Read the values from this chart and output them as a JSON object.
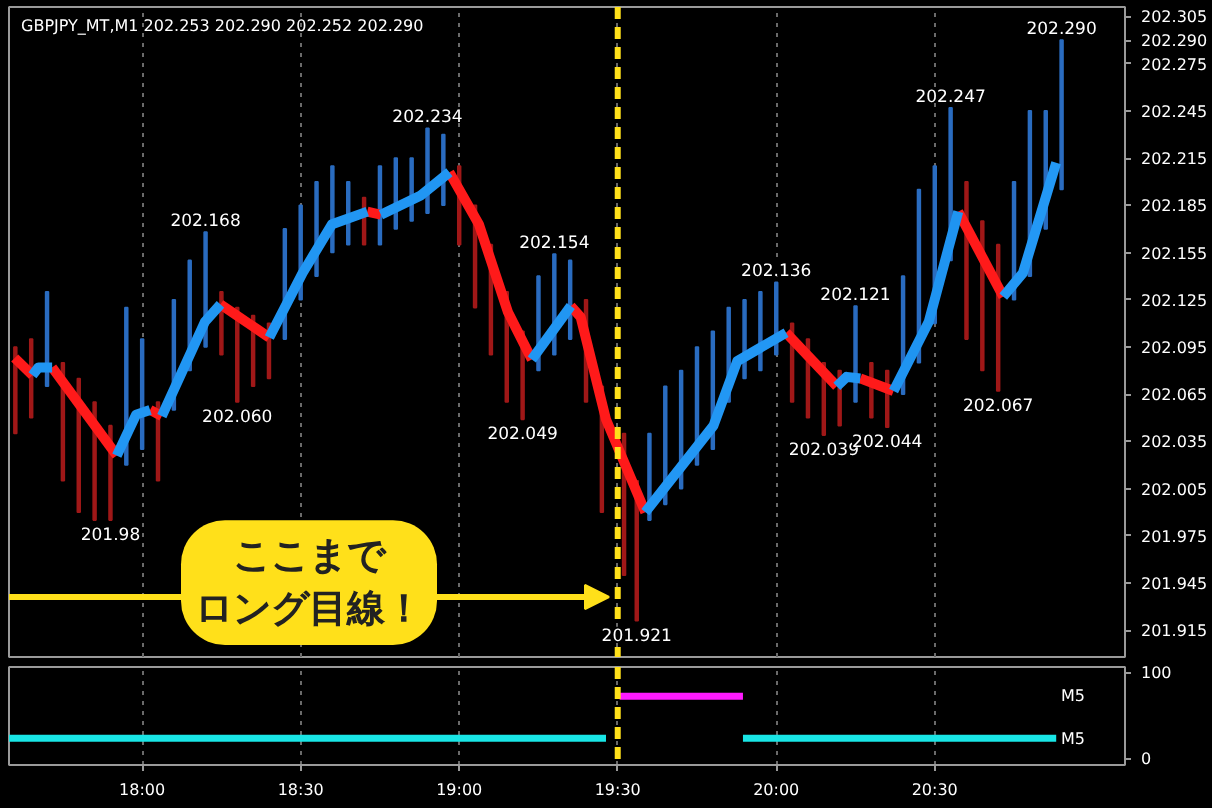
{
  "chart_data": [
    {
      "type": "bar",
      "title": "GBPJPY_MT,M1  202.253 202.290 202.252 202.290",
      "xlim": [
        17.58,
        21.1
      ],
      "ylim": [
        201.898,
        202.311
      ],
      "xticks": [
        {
          "value": 18,
          "label": null
        },
        {
          "value": 18.5,
          "label": null
        },
        {
          "value": 19,
          "label": null
        },
        {
          "value": 19.5,
          "label": null
        },
        {
          "value": 20,
          "label": null
        },
        {
          "value": 20.5,
          "label": null
        }
      ],
      "yticks": [
        202.305,
        {
          "value": 202.29,
          "label": "202.290"
        },
        202.275,
        202.245,
        202.215,
        202.185,
        202.155,
        202.125,
        202.095,
        202.065,
        202.035,
        202.005,
        201.975,
        201.945,
        201.915
      ],
      "tick_labels": "y",
      "grid": "x",
      "line_style": "solid",
      "series": [
        {
          "type": "bar",
          "x": [
            17.6,
            17.65,
            17.7,
            17.75,
            17.8,
            17.85,
            17.9,
            17.95,
            18,
            18.05,
            18.1,
            18.15,
            18.2,
            18.25,
            18.3,
            18.35,
            18.4,
            18.45,
            18.5,
            18.55,
            18.6,
            18.65,
            18.7,
            18.75,
            18.8,
            18.85,
            18.9,
            18.95,
            19,
            19.05,
            19.1,
            19.15,
            19.2,
            19.25,
            19.3,
            19.35,
            19.4,
            19.45,
            19.52,
            19.56,
            19.6,
            19.65,
            19.7,
            19.75,
            19.8,
            19.85,
            19.9,
            19.95,
            20,
            20.05,
            20.1,
            20.15,
            20.2,
            20.25,
            20.3,
            20.35,
            20.4,
            20.45,
            20.5,
            20.55,
            20.6,
            20.65,
            20.7,
            20.75,
            20.8,
            20.85,
            20.9
          ],
          "base": [
            202.04,
            202.05,
            202.07,
            202.01,
            201.99,
            201.985,
            201.985,
            202.02,
            202.03,
            202.01,
            202.055,
            202.08,
            202.095,
            202.09,
            202.06,
            202.07,
            202.075,
            202.1,
            202.125,
            202.14,
            202.155,
            202.16,
            202.16,
            202.16,
            202.17,
            202.175,
            202.18,
            202.185,
            202.16,
            202.12,
            202.09,
            202.06,
            202.049,
            202.08,
            202.09,
            202.1,
            202.06,
            201.99,
            201.95,
            201.921,
            201.985,
            201.995,
            202.005,
            202.02,
            202.03,
            202.06,
            202.075,
            202.08,
            202.09,
            202.06,
            202.05,
            202.039,
            202.045,
            202.06,
            202.05,
            202.044,
            202.065,
            202.085,
            202.11,
            202.15,
            202.1,
            202.08,
            202.067,
            202.125,
            202.14,
            202.17,
            202.195
          ],
          "values": [
            0.055,
            0.05,
            0.06,
            0.075,
            0.085,
            0.075,
            0.06,
            0.1,
            0.07,
            0.05,
            0.07,
            0.07,
            0.073,
            0.04,
            0.06,
            0.045,
            0.035,
            0.07,
            0.06,
            0.06,
            0.055,
            0.04,
            0.03,
            0.05,
            0.045,
            0.04,
            0.054,
            0.045,
            0.05,
            0.065,
            0.07,
            0.07,
            0.056,
            0.06,
            0.064,
            0.05,
            0.065,
            0.08,
            0.09,
            0.089,
            0.055,
            0.075,
            0.075,
            0.075,
            0.075,
            0.06,
            0.05,
            0.05,
            0.046,
            0.05,
            0.05,
            0.046,
            0.035,
            0.061,
            0.035,
            0.036,
            0.075,
            0.11,
            0.1,
            0.097,
            0.1,
            0.095,
            0.093,
            0.075,
            0.105,
            0.075,
            0.095
          ],
          "colors": [
            "#a01818",
            "#a01818",
            "#2a6cc0",
            "#a01818",
            "#a01818",
            "#a01818",
            "#a01818",
            "#2a6cc0",
            "#2a6cc0",
            "#a01818",
            "#2a6cc0",
            "#2a6cc0",
            "#2a6cc0",
            "#a01818",
            "#a01818",
            "#a01818",
            "#a01818",
            "#2a6cc0",
            "#2a6cc0",
            "#2a6cc0",
            "#2a6cc0",
            "#2a6cc0",
            "#a01818",
            "#2a6cc0",
            "#2a6cc0",
            "#2a6cc0",
            "#2a6cc0",
            "#2a6cc0",
            "#a01818",
            "#a01818",
            "#a01818",
            "#a01818",
            "#a01818",
            "#2a6cc0",
            "#2a6cc0",
            "#2a6cc0",
            "#a01818",
            "#a01818",
            "#a01818",
            "#a01818",
            "#2a6cc0",
            "#2a6cc0",
            "#2a6cc0",
            "#2a6cc0",
            "#2a6cc0",
            "#2a6cc0",
            "#2a6cc0",
            "#2a6cc0",
            "#2a6cc0",
            "#a01818",
            "#a01818",
            "#a01818",
            "#a01818",
            "#2a6cc0",
            "#a01818",
            "#a01818",
            "#2a6cc0",
            "#2a6cc0",
            "#2a6cc0",
            "#2a6cc0",
            "#a01818",
            "#a01818",
            "#a01818",
            "#2a6cc0",
            "#2a6cc0",
            "#2a6cc0",
            "#2a6cc0"
          ]
        },
        {
          "type": "line",
          "color": "#ff1a1a",
          "x": [
            17.598,
            17.654
          ],
          "values": [
            202.088,
            202.077
          ]
        },
        {
          "type": "line",
          "color": "#2095f2",
          "x": [
            17.654,
            17.673,
            17.716
          ],
          "values": [
            202.077,
            202.082,
            202.082
          ]
        },
        {
          "type": "line",
          "color": "#ff1a1a",
          "x": [
            17.716,
            17.92
          ],
          "values": [
            202.082,
            202.026
          ]
        },
        {
          "type": "line",
          "color": "#2196f3",
          "x": [
            17.92,
            17.981,
            18.025
          ],
          "values": [
            202.026,
            202.052,
            202.055
          ]
        },
        {
          "type": "line",
          "color": "#ff1a1a",
          "x": [
            18.025,
            18.062
          ],
          "values": [
            202.055,
            202.051
          ]
        },
        {
          "type": "line",
          "color": "#2196f3",
          "x": [
            18.062,
            18.198,
            18.247
          ],
          "values": [
            202.051,
            202.111,
            202.122
          ]
        },
        {
          "type": "line",
          "color": "#ff1a1a",
          "x": [
            18.247,
            18.401
          ],
          "values": [
            202.122,
            202.101
          ]
        },
        {
          "type": "line",
          "color": "#2196f3",
          "x": [
            18.401,
            18.506,
            18.599,
            18.71
          ],
          "values": [
            202.101,
            202.142,
            202.173,
            202.181
          ]
        },
        {
          "type": "line",
          "color": "#ff1a1a",
          "x": [
            18.71,
            18.753
          ],
          "values": [
            202.181,
            202.179
          ]
        },
        {
          "type": "line",
          "color": "#2196f3",
          "x": [
            18.753,
            18.877,
            18.969
          ],
          "values": [
            202.179,
            202.191,
            202.206
          ]
        },
        {
          "type": "line",
          "color": "#ff1a1a",
          "x": [
            18.969,
            19.062,
            19.154,
            19.229
          ],
          "values": [
            202.206,
            202.173,
            202.117,
            202.087
          ]
        },
        {
          "type": "line",
          "color": "#2196f3",
          "x": [
            19.229,
            19.352
          ],
          "values": [
            202.087,
            202.121
          ]
        },
        {
          "type": "line",
          "color": "#ff1a1a",
          "x": [
            19.352,
            19.383,
            19.463,
            19.587
          ],
          "values": [
            202.121,
            202.114,
            202.049,
            201.99
          ]
        },
        {
          "type": "line",
          "color": "#2297f4",
          "x": [
            19.587,
            19.802,
            19.877,
            20.031
          ],
          "values": [
            201.99,
            202.045,
            202.086,
            202.104
          ]
        },
        {
          "type": "line",
          "color": "#ff1a1a",
          "x": [
            20.031,
            20.191
          ],
          "values": [
            202.104,
            202.07
          ]
        },
        {
          "type": "line",
          "color": "#2196f3",
          "x": [
            20.191,
            20.222,
            20.265
          ],
          "values": [
            202.07,
            202.076,
            202.075
          ]
        },
        {
          "type": "line",
          "color": "#ff1a1a",
          "x": [
            20.265,
            20.37
          ],
          "values": [
            202.075,
            202.067
          ]
        },
        {
          "type": "line",
          "color": "#1f94f1",
          "x": [
            20.37,
            20.481,
            20.574
          ],
          "values": [
            202.067,
            202.111,
            202.181
          ]
        },
        {
          "type": "line",
          "color": "#ff1a1a",
          "x": [
            20.574,
            20.716
          ],
          "values": [
            202.181,
            202.127
          ]
        },
        {
          "type": "line",
          "color": "#2398f5",
          "x": [
            20.716,
            20.778,
            20.883
          ],
          "values": [
            202.127,
            202.142,
            202.212
          ]
        }
      ],
      "ref_lines": [
        {
          "axis": "x",
          "value": 19.5,
          "color": "#ffe01a",
          "line_style": "dashed"
        }
      ],
      "annotations": [
        {
          "text": "202.168",
          "x": 18.2,
          "y": 202.168
        },
        {
          "text": "202.234",
          "x": 18.9,
          "y": 202.234
        },
        {
          "text": "202.154",
          "x": 19.3,
          "y": 202.154
        },
        {
          "text": "202.136",
          "x": 20.0,
          "y": 202.136
        },
        {
          "text": "202.121",
          "x": 20.25,
          "y": 202.121
        },
        {
          "text": "202.247",
          "x": 20.55,
          "y": 202.247
        },
        {
          "text": "202.290",
          "x": 20.9,
          "y": 202.29
        },
        {
          "text": "201.98",
          "x": 17.9,
          "y": 201.985
        },
        {
          "text": "202.060",
          "x": 18.3,
          "y": 202.06
        },
        {
          "text": "202.049",
          "x": 19.2,
          "y": 202.049
        },
        {
          "text": "201.921",
          "x": 19.56,
          "y": 201.921
        },
        {
          "text": "202.039",
          "x": 20.15,
          "y": 202.039
        },
        {
          "text": "202.044",
          "x": 20.35,
          "y": 202.044
        },
        {
          "text": "202.067",
          "x": 20.7,
          "y": 202.067
        },
        "ここまでロング目線！"
      ]
    },
    {
      "type": "line",
      "xlim": [
        17.58,
        21.1
      ],
      "ylim": [
        -8,
        106
      ],
      "yticks": [
        0,
        100
      ],
      "xticks": [
        {
          "value": 18,
          "label": "18:00"
        },
        {
          "value": 18.5,
          "label": "18:30"
        },
        {
          "value": 19,
          "label": "19:00"
        },
        {
          "value": 19.5,
          "label": "19:30"
        },
        {
          "value": 20,
          "label": "20:00"
        },
        {
          "value": 20.5,
          "label": "20:30"
        }
      ],
      "grid": "x",
      "line_style": "solid",
      "series": [
        {
          "color": "#ff1aff",
          "x": [
            19.506,
            19.895
          ],
          "values": [
            72,
            72
          ]
        },
        {
          "color": "#19e6e6",
          "x": [
            17.58,
            19.463
          ],
          "values": [
            23,
            23
          ]
        },
        {
          "color": "#19e6e6",
          "x": [
            19.895,
            20.883
          ],
          "values": [
            23,
            23
          ]
        }
      ],
      "ref_lines": [
        {
          "axis": "x",
          "value": 19.5,
          "color": "#ffe01a",
          "line_style": "dashed"
        }
      ],
      "annotations": [
        "M5",
        "M5"
      ]
    }
  ]
}
